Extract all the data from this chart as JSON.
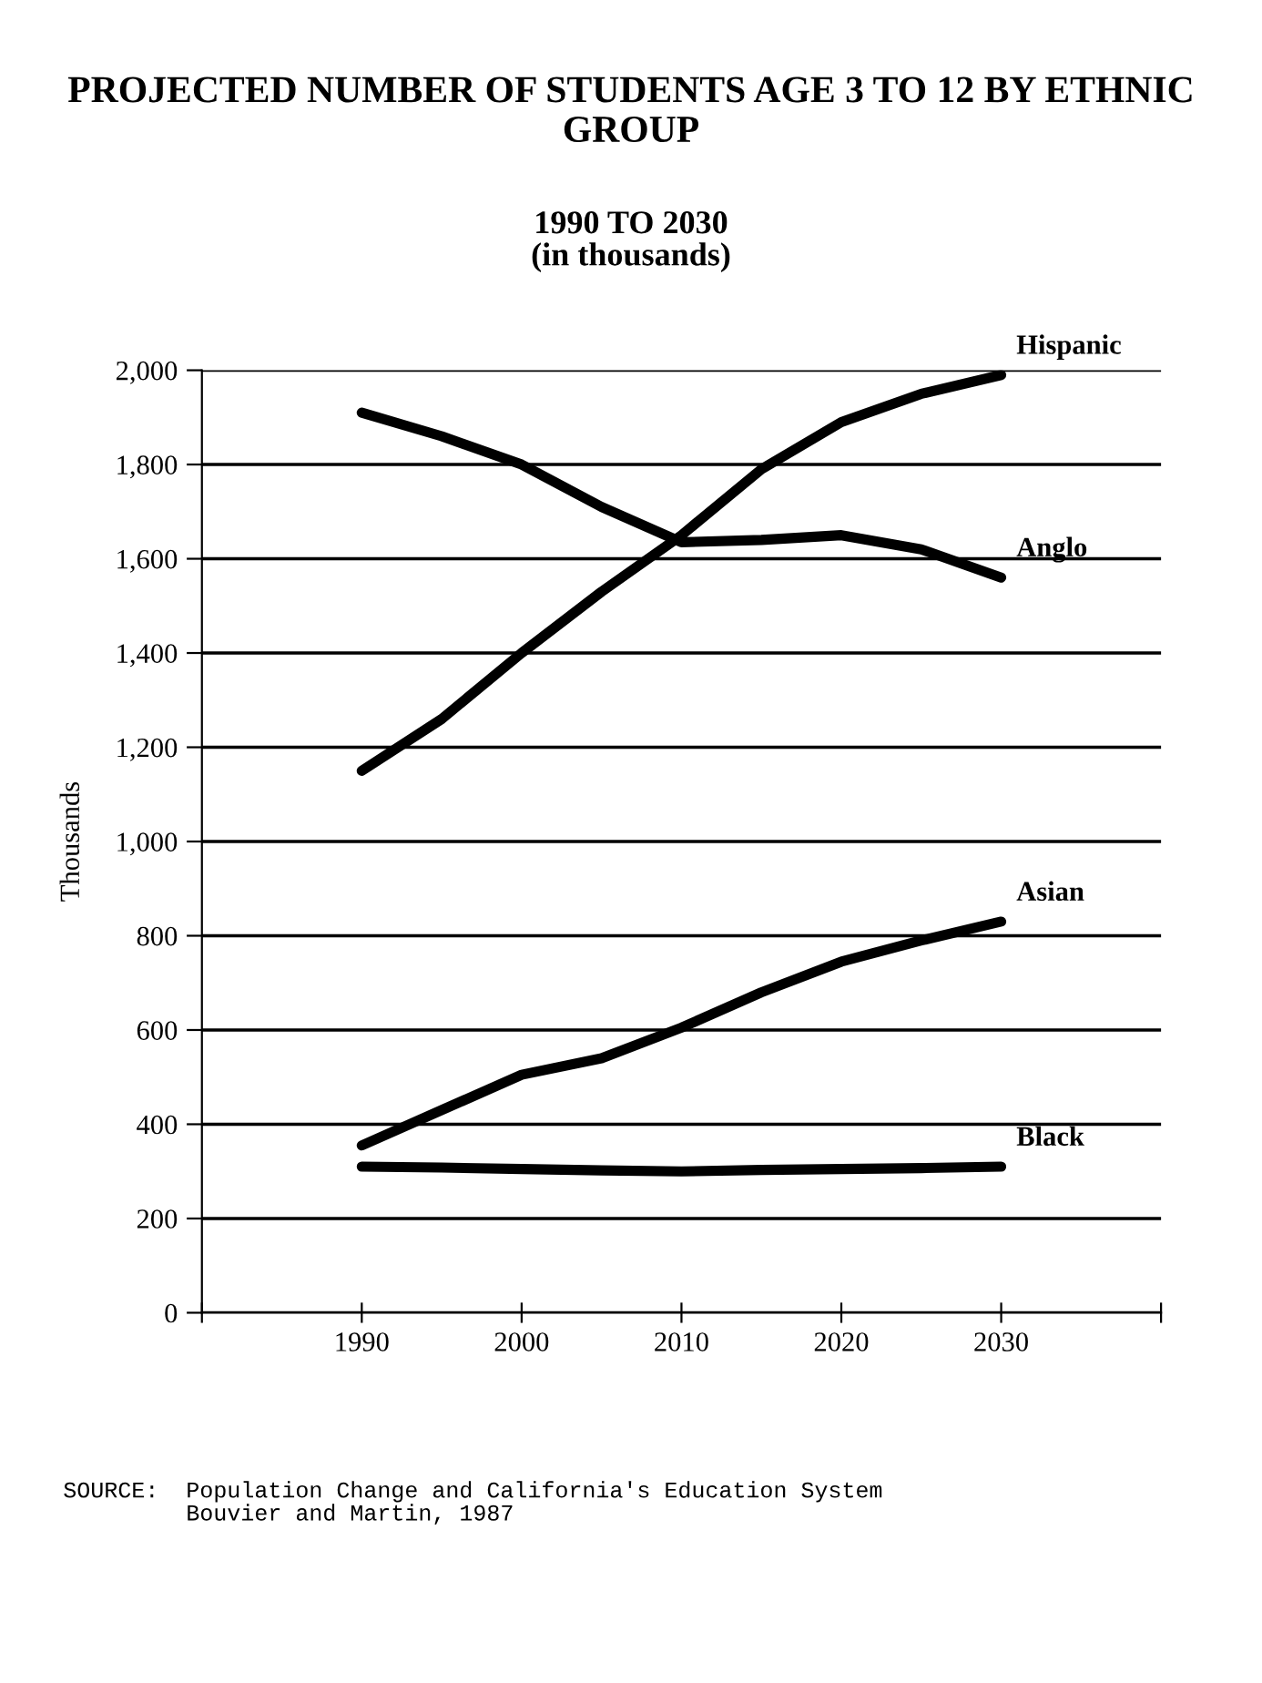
{
  "chart_data": {
    "type": "line",
    "title": "PROJECTED NUMBER OF STUDENTS AGE 3 TO 12 BY ETHNIC GROUP",
    "subtitle": "1990 TO 2030\n(in thousands)",
    "ylabel": "Thousands",
    "annotations": [
      "SOURCE:  Population Change and California's Education System\n         Bouvier and Martin, 1987"
    ],
    "x": [
      1990,
      1995,
      2000,
      2005,
      2010,
      2015,
      2020,
      2025,
      2030
    ],
    "xlim": [
      1980,
      2040
    ],
    "xticks": [
      {
        "value": 1980,
        "label": null
      },
      1990,
      2000,
      2010,
      2020,
      2030,
      {
        "value": 2040,
        "label": null
      }
    ],
    "ylim": [
      0,
      2000
    ],
    "yticks": [
      0,
      200,
      400,
      600,
      800,
      {
        "value": 1000,
        "label": "1,000"
      },
      {
        "value": 1200,
        "label": "1,200"
      },
      {
        "value": 1400,
        "label": "1,400"
      },
      {
        "value": 1600,
        "label": "1,600"
      },
      {
        "value": 1800,
        "label": "1,800"
      },
      {
        "value": 2000,
        "label": "2,000"
      }
    ],
    "grid": "y",
    "legend": false,
    "line_style": "solid",
    "series": [
      {
        "name": "Hispanic",
        "color": "#000000",
        "values": [
          1150,
          1260,
          1400,
          1530,
          1650,
          1790,
          1890,
          1950,
          1990
        ]
      },
      {
        "name": "Anglo",
        "color": "#000000",
        "values": [
          1910,
          1860,
          1800,
          1710,
          1635,
          1640,
          1650,
          1620,
          1560
        ]
      },
      {
        "name": "Asian",
        "color": "#000000",
        "values": [
          355,
          430,
          505,
          540,
          605,
          680,
          745,
          790,
          830
        ]
      },
      {
        "name": "Black",
        "color": "#000000",
        "values": [
          310,
          308,
          305,
          302,
          300,
          303,
          305,
          307,
          310
        ]
      }
    ]
  }
}
